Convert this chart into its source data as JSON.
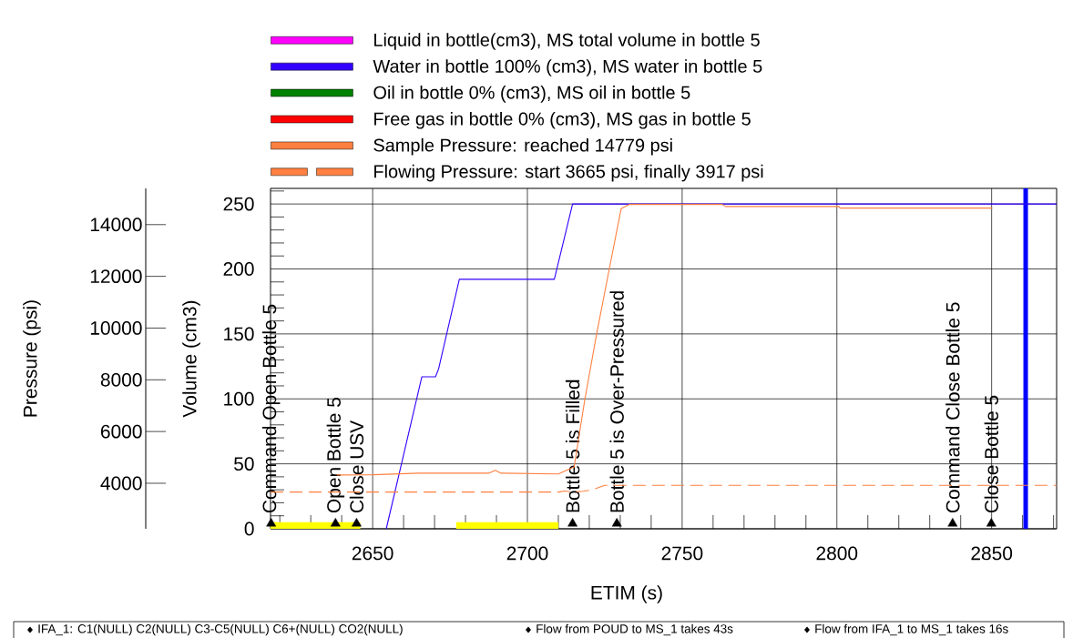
{
  "chart_data": {
    "type": "line",
    "xlabel": "ETIM (s)",
    "ylabel": "Volume (cm3)",
    "y2label": "Pressure (psi)",
    "xlim": [
      2617,
      2871
    ],
    "ylim": [
      0,
      262
    ],
    "y2lim": [
      2240,
      15400
    ],
    "xticks": [
      {
        "value": 2620,
        "label": null
      },
      {
        "value": 2630,
        "label": null
      },
      {
        "value": 2640,
        "label": null
      },
      2650,
      {
        "value": 2660,
        "label": null
      },
      {
        "value": 2670,
        "label": null
      },
      {
        "value": 2680,
        "label": null
      },
      {
        "value": 2690,
        "label": null
      },
      2700,
      {
        "value": 2710,
        "label": null
      },
      {
        "value": 2720,
        "label": null
      },
      {
        "value": 2730,
        "label": null
      },
      {
        "value": 2740,
        "label": null
      },
      2750,
      {
        "value": 2760,
        "label": null
      },
      {
        "value": 2770,
        "label": null
      },
      {
        "value": 2780,
        "label": null
      },
      {
        "value": 2790,
        "label": null
      },
      2800,
      {
        "value": 2810,
        "label": null
      },
      {
        "value": 2820,
        "label": null
      },
      {
        "value": 2830,
        "label": null
      },
      {
        "value": 2840,
        "label": null
      },
      2850,
      {
        "value": 2860,
        "label": null
      },
      {
        "value": 2870,
        "label": null
      }
    ],
    "yticks": [
      0,
      {
        "value": 10,
        "label": null
      },
      {
        "value": 20,
        "label": null
      },
      {
        "value": 30,
        "label": null
      },
      {
        "value": 40,
        "label": null
      },
      50,
      {
        "value": 60,
        "label": null
      },
      {
        "value": 70,
        "label": null
      },
      {
        "value": 80,
        "label": null
      },
      {
        "value": 90,
        "label": null
      },
      100,
      {
        "value": 110,
        "label": null
      },
      {
        "value": 120,
        "label": null
      },
      {
        "value": 130,
        "label": null
      },
      {
        "value": 140,
        "label": null
      },
      150,
      {
        "value": 160,
        "label": null
      },
      {
        "value": 170,
        "label": null
      },
      {
        "value": 180,
        "label": null
      },
      {
        "value": 190,
        "label": null
      },
      200,
      {
        "value": 210,
        "label": null
      },
      {
        "value": 220,
        "label": null
      },
      {
        "value": 230,
        "label": null
      },
      {
        "value": 240,
        "label": null
      },
      250,
      {
        "value": 260,
        "label": null
      }
    ],
    "y2ticks": [
      4000,
      6000,
      8000,
      10000,
      12000,
      14000
    ],
    "grid": true,
    "legend": "top",
    "series": [
      {
        "name": "Liquid in bottle(cm3), MS total volume in bottle 5",
        "color": "#ff00ff"
      },
      {
        "name": "Water in bottle 100% (cm3), MS water in bottle 5",
        "color": "#3300ff",
        "x": [
          2654.4,
          2665.9,
          2670.3,
          2671.3,
          2678.0,
          2708.7,
          2714.6,
          2871
        ],
        "values": [
          0,
          117,
          117,
          123,
          192,
          192,
          250,
          250
        ]
      },
      {
        "name": "Oil in bottle 0% (cm3), MS oil in bottle 5",
        "color": "#008000"
      },
      {
        "name": "Free gas in bottle 0% (cm3), MS gas in bottle 5",
        "color": "#ff0000"
      },
      {
        "name": "Sample Pressure: reached 14779 psi",
        "color": "#ff8040",
        "axis": "y2",
        "line_style": "solid",
        "x": [
          2638.4,
          2650,
          2665,
          2687.5,
          2689.6,
          2691.5,
          2710,
          2715.1,
          2718.5,
          2722.4,
          2726.4,
          2730.3,
          2733,
          2763,
          2764,
          2800.6,
          2801,
          2850.2
        ],
        "values": [
          4320,
          4330,
          4390,
          4390,
          4500,
          4390,
          4360,
          4630,
          7200,
          9790,
          12250,
          14620,
          14780,
          14780,
          14700,
          14700,
          14640,
          14640
        ]
      },
      {
        "name": "Flowing Pressure: start 3665 psi, finally 3917 psi",
        "color": "#ff8040",
        "axis": "y2",
        "line_style": "dashed",
        "x": [
          2617,
          2710.1,
          2712,
          2715,
          2718,
          2721,
          2725,
          2871
        ],
        "values": [
          3660,
          3660,
          3700,
          3660,
          3690,
          3750,
          3920,
          3920
        ]
      },
      {
        "type": "area",
        "color": "#ffff00",
        "x": [
          2617,
          2646
        ],
        "values": [
          5,
          5
        ]
      },
      {
        "type": "area",
        "color": "#ffff00",
        "x": [
          2677,
          2710
        ],
        "values": [
          5,
          5
        ]
      },
      {
        "type": "scatter",
        "color": "#000000",
        "marker": "triangle",
        "x": [
          2617.2,
          2638,
          2644.8,
          2714.6,
          2728.9,
          2837.4,
          2849.9
        ],
        "values": [
          4,
          4,
          4,
          4,
          4,
          4,
          4
        ],
        "value_labels": [
          "Command Open Bottle 5",
          "Open Bottle 5",
          "Close USV",
          "Bottle 5 is Filled",
          "Bottle 5 is Over-Pressured",
          "Command Close Bottle 5",
          "Close Bottle 5"
        ]
      }
    ],
    "ref_lines": [
      {
        "axis": "x",
        "value": 2861,
        "label": null,
        "color": "#0000ff"
      }
    ],
    "annotations": [
      "IFA_1: C1(NULL) C2(NULL) C3-C5(NULL) C6+(NULL) CO2(NULL)",
      "Flow from POUD to MS_1 takes 43s",
      "Flow from IFA_1 to MS_1 takes 16s"
    ]
  }
}
